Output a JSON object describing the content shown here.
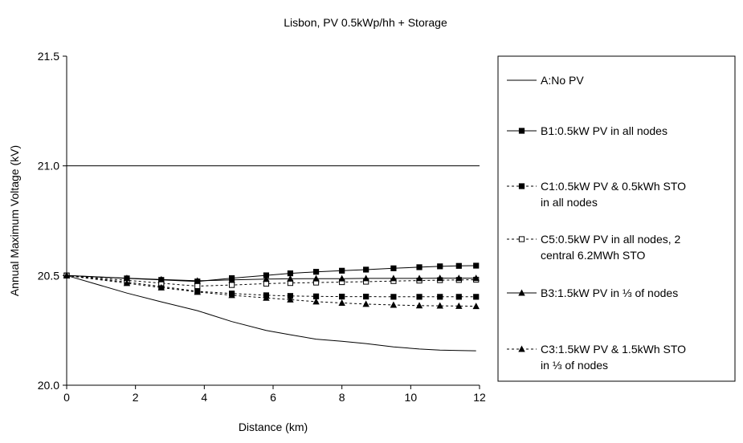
{
  "chart_data": {
    "type": "line",
    "title": "Lisbon, PV 0.5kWp/hh + Storage",
    "xlabel": "Distance (km)",
    "ylabel": "Annual Maximum Voltage (kV)",
    "xlim": [
      0,
      12
    ],
    "ylim": [
      20.0,
      21.5
    ],
    "xticks": [
      "0",
      "2",
      "4",
      "6",
      "8",
      "10",
      "12"
    ],
    "yticks": [
      "20.0",
      "20.5",
      "21.0",
      "21.5"
    ],
    "reference_line": 21.0,
    "grid": false,
    "legend_position": "right",
    "series": [
      {
        "name": "A:No PV",
        "line": "solid",
        "marker": "none",
        "x": [
          0,
          1.75,
          2.75,
          3.8,
          4.8,
          5.8,
          6.5,
          7.25,
          8.0,
          8.7,
          9.5,
          10.25,
          10.85,
          11.4,
          11.9
        ],
        "y": [
          20.5,
          20.42,
          20.38,
          20.34,
          20.29,
          20.25,
          20.23,
          20.21,
          20.2,
          20.19,
          20.175,
          20.165,
          20.16,
          20.158,
          20.157
        ]
      },
      {
        "name": "B1:0.5kW PV in all nodes",
        "line": "solid",
        "marker": "square-filled",
        "x": [
          0,
          1.75,
          2.75,
          3.8,
          4.8,
          5.8,
          6.5,
          7.25,
          8.0,
          8.7,
          9.5,
          10.25,
          10.85,
          11.4,
          11.9
        ],
        "y": [
          20.5,
          20.487,
          20.48,
          20.473,
          20.488,
          20.501,
          20.51,
          20.517,
          20.522,
          20.527,
          20.533,
          20.538,
          20.542,
          20.544,
          20.545
        ]
      },
      {
        "name": "C1:0.5kW PV & 0.5kWh STO in all nodes",
        "line": "dotted",
        "marker": "square-filled",
        "x": [
          0,
          1.75,
          2.75,
          3.8,
          4.8,
          5.8,
          6.5,
          7.25,
          8.0,
          8.7,
          9.5,
          10.25,
          10.85,
          11.4,
          11.9
        ],
        "y": [
          20.5,
          20.47,
          20.45,
          20.428,
          20.418,
          20.41,
          20.407,
          20.405,
          20.404,
          20.404,
          20.403,
          20.403,
          20.403,
          20.403,
          20.403
        ]
      },
      {
        "name": "C5:0.5kW PV in all nodes, 2 central 6.2MWh STO",
        "line": "dotted",
        "marker": "square-open",
        "x": [
          0,
          1.75,
          2.75,
          3.8,
          4.8,
          5.8,
          6.5,
          7.25,
          8.0,
          8.7,
          9.5,
          10.25,
          10.85,
          11.4,
          11.9
        ],
        "y": [
          20.5,
          20.478,
          20.465,
          20.452,
          20.457,
          20.463,
          20.466,
          20.468,
          20.47,
          20.472,
          20.475,
          20.477,
          20.479,
          20.48,
          20.481
        ]
      },
      {
        "name": "B3:1.5kW PV in ⅓ of nodes",
        "line": "solid",
        "marker": "triangle-filled",
        "x": [
          0,
          1.75,
          2.75,
          3.8,
          4.8,
          5.8,
          6.5,
          7.25,
          8.0,
          8.7,
          9.5,
          10.25,
          10.85,
          11.4,
          11.9
        ],
        "y": [
          20.5,
          20.488,
          20.482,
          20.476,
          20.48,
          20.484,
          20.485,
          20.486,
          20.486,
          20.487,
          20.487,
          20.487,
          20.488,
          20.488,
          20.488
        ]
      },
      {
        "name": "C3:1.5kW PV & 1.5kWh STO in ⅓ of nodes",
        "line": "dotted",
        "marker": "triangle-filled",
        "x": [
          0,
          1.75,
          2.75,
          3.8,
          4.8,
          5.8,
          6.5,
          7.25,
          8.0,
          8.7,
          9.5,
          10.25,
          10.85,
          11.4,
          11.9
        ],
        "y": [
          20.5,
          20.465,
          20.445,
          20.425,
          20.41,
          20.398,
          20.39,
          20.381,
          20.375,
          20.37,
          20.366,
          20.363,
          20.362,
          20.361,
          20.36
        ]
      }
    ],
    "legend_lines": [
      [
        "A:No PV"
      ],
      [
        "B1:0.5kW PV in all nodes"
      ],
      [
        "C1:0.5kW PV & 0.5kWh STO",
        "in all nodes"
      ],
      [
        "C5:0.5kW PV in all nodes, 2",
        "central 6.2MWh STO"
      ],
      [
        "B3:1.5kW PV in ⅓ of nodes"
      ],
      [
        "C3:1.5kW PV & 1.5kWh STO",
        "in ⅓ of nodes"
      ]
    ]
  }
}
